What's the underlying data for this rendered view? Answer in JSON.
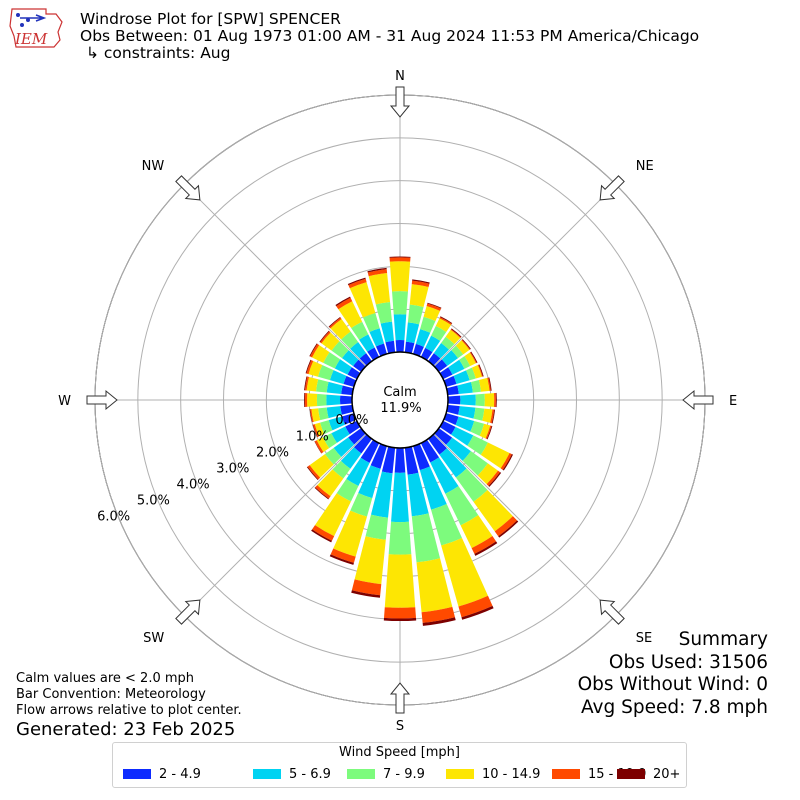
{
  "header": {
    "title": "Windrose Plot for [SPW] SPENCER",
    "obs_between": "Obs Between: 01 Aug 1973 01:00 AM - 31 Aug 2024 11:53 PM America/Chicago",
    "constraints": "↳ constraints: Aug",
    "logo_text": "IEM"
  },
  "summary": {
    "heading": "Summary",
    "obs_used": "Obs Used: 31506",
    "obs_without_wind": "Obs Without Wind: 0",
    "avg_speed": "Avg Speed: 7.8 mph"
  },
  "notes": {
    "calm_note": "Calm values are < 2.0 mph",
    "bar_convention": "Bar Convention: Meteorology",
    "flow_arrows": "Flow arrows relative to plot center.",
    "generated": "Generated: 23 Feb 2025"
  },
  "legend": {
    "title": "Wind Speed [mph]",
    "items": [
      {
        "label": "2 - 4.9",
        "color": "#0d2bff"
      },
      {
        "label": "5 - 6.9",
        "color": "#00d3f2"
      },
      {
        "label": "7 - 9.9",
        "color": "#7dfb7d"
      },
      {
        "label": "10 - 14.9",
        "color": "#fde603"
      },
      {
        "label": "15 - 19.9",
        "color": "#ff4a00"
      },
      {
        "label": "20+",
        "color": "#7d0000"
      }
    ]
  },
  "chart_data": {
    "type": "windrose",
    "calm_label": "Calm",
    "calm_value": "11.9%",
    "radial_labels": [
      "0.0%",
      "1.0%",
      "2.0%",
      "3.0%",
      "4.0%",
      "5.0%",
      "6.0%"
    ],
    "radial_max": 6.0,
    "compass_labels": [
      "N",
      "NE",
      "E",
      "SE",
      "S",
      "SW",
      "W",
      "NW"
    ],
    "bin_colors": [
      "#0d2bff",
      "#00d3f2",
      "#7dfb7d",
      "#fde603",
      "#ff4a00",
      "#7d0000"
    ],
    "directions": [
      {
        "dir": 0,
        "cum": [
          0.28,
          0.88,
          1.42,
          2.12,
          2.21,
          2.23
        ]
      },
      {
        "dir": 10,
        "cum": [
          0.25,
          0.7,
          1.12,
          1.6,
          1.68,
          1.71
        ]
      },
      {
        "dir": 20,
        "cum": [
          0.24,
          0.6,
          0.9,
          1.16,
          1.22,
          1.24
        ]
      },
      {
        "dir": 30,
        "cum": [
          0.23,
          0.55,
          0.8,
          1.0,
          1.03,
          1.05
        ]
      },
      {
        "dir": 40,
        "cum": [
          0.23,
          0.52,
          0.7,
          0.9,
          0.92,
          0.94
        ]
      },
      {
        "dir": 50,
        "cum": [
          0.24,
          0.55,
          0.7,
          0.88,
          0.9,
          0.92
        ]
      },
      {
        "dir": 60,
        "cum": [
          0.24,
          0.55,
          0.7,
          0.85,
          0.87,
          0.89
        ]
      },
      {
        "dir": 70,
        "cum": [
          0.25,
          0.57,
          0.72,
          0.87,
          0.89,
          0.91
        ]
      },
      {
        "dir": 80,
        "cum": [
          0.26,
          0.59,
          0.78,
          0.98,
          1.01,
          1.03
        ]
      },
      {
        "dir": 90,
        "cum": [
          0.29,
          0.65,
          0.86,
          1.08,
          1.12,
          1.14
        ]
      },
      {
        "dir": 100,
        "cum": [
          0.28,
          0.65,
          0.86,
          1.05,
          1.09,
          1.11
        ]
      },
      {
        "dir": 110,
        "cum": [
          0.3,
          0.68,
          0.92,
          1.07,
          1.1,
          1.12
        ]
      },
      {
        "dir": 120,
        "cum": [
          0.32,
          0.78,
          1.16,
          1.72,
          1.78,
          1.81
        ]
      },
      {
        "dir": 130,
        "cum": [
          0.38,
          0.92,
          1.41,
          1.7,
          1.76,
          1.79
        ]
      },
      {
        "dir": 140,
        "cum": [
          0.45,
          1.11,
          1.81,
          2.66,
          2.8,
          2.84
        ]
      },
      {
        "dir": 150,
        "cum": [
          0.5,
          1.31,
          2.13,
          2.72,
          2.87,
          2.92
        ]
      },
      {
        "dir": 160,
        "cum": [
          0.58,
          1.54,
          2.41,
          3.89,
          4.15,
          4.21
        ]
      },
      {
        "dir": 170,
        "cum": [
          0.63,
          1.61,
          2.69,
          3.86,
          4.11,
          4.18
        ]
      },
      {
        "dir": 180,
        "cum": [
          0.58,
          1.73,
          2.49,
          3.73,
          3.98,
          4.04
        ]
      },
      {
        "dir": 190,
        "cum": [
          0.6,
          1.64,
          2.16,
          3.2,
          3.46,
          3.52
        ]
      },
      {
        "dir": 200,
        "cum": [
          0.55,
          1.26,
          1.71,
          2.68,
          2.83,
          2.88
        ]
      },
      {
        "dir": 210,
        "cum": [
          0.51,
          1.11,
          1.51,
          2.41,
          2.53,
          2.57
        ]
      },
      {
        "dir": 220,
        "cum": [
          0.42,
          0.86,
          1.14,
          1.65,
          1.72,
          1.74
        ]
      },
      {
        "dir": 230,
        "cum": [
          0.37,
          0.79,
          1.04,
          1.48,
          1.54,
          1.56
        ]
      },
      {
        "dir": 240,
        "cum": [
          0.3,
          0.66,
          0.88,
          1.04,
          1.09,
          1.1
        ]
      },
      {
        "dir": 250,
        "cum": [
          0.29,
          0.61,
          0.82,
          0.95,
          0.99,
          1.0
        ]
      },
      {
        "dir": 260,
        "cum": [
          0.28,
          0.6,
          0.8,
          0.96,
          0.99,
          1.0
        ]
      },
      {
        "dir": 270,
        "cum": [
          0.28,
          0.6,
          0.82,
          1.05,
          1.1,
          1.12
        ]
      },
      {
        "dir": 280,
        "cum": [
          0.26,
          0.6,
          0.85,
          1.07,
          1.11,
          1.13
        ]
      },
      {
        "dir": 290,
        "cum": [
          0.25,
          0.58,
          0.87,
          1.1,
          1.15,
          1.17
        ]
      },
      {
        "dir": 300,
        "cum": [
          0.24,
          0.57,
          0.87,
          1.16,
          1.21,
          1.23
        ]
      },
      {
        "dir": 310,
        "cum": [
          0.23,
          0.55,
          0.85,
          1.14,
          1.18,
          1.2
        ]
      },
      {
        "dir": 320,
        "cum": [
          0.23,
          0.55,
          0.85,
          1.21,
          1.25,
          1.27
        ]
      },
      {
        "dir": 330,
        "cum": [
          0.24,
          0.58,
          0.91,
          1.44,
          1.53,
          1.56
        ]
      },
      {
        "dir": 340,
        "cum": [
          0.25,
          0.62,
          0.99,
          1.74,
          1.82,
          1.85
        ]
      },
      {
        "dir": 350,
        "cum": [
          0.27,
          0.72,
          1.18,
          1.86,
          1.95,
          1.98
        ]
      }
    ]
  }
}
